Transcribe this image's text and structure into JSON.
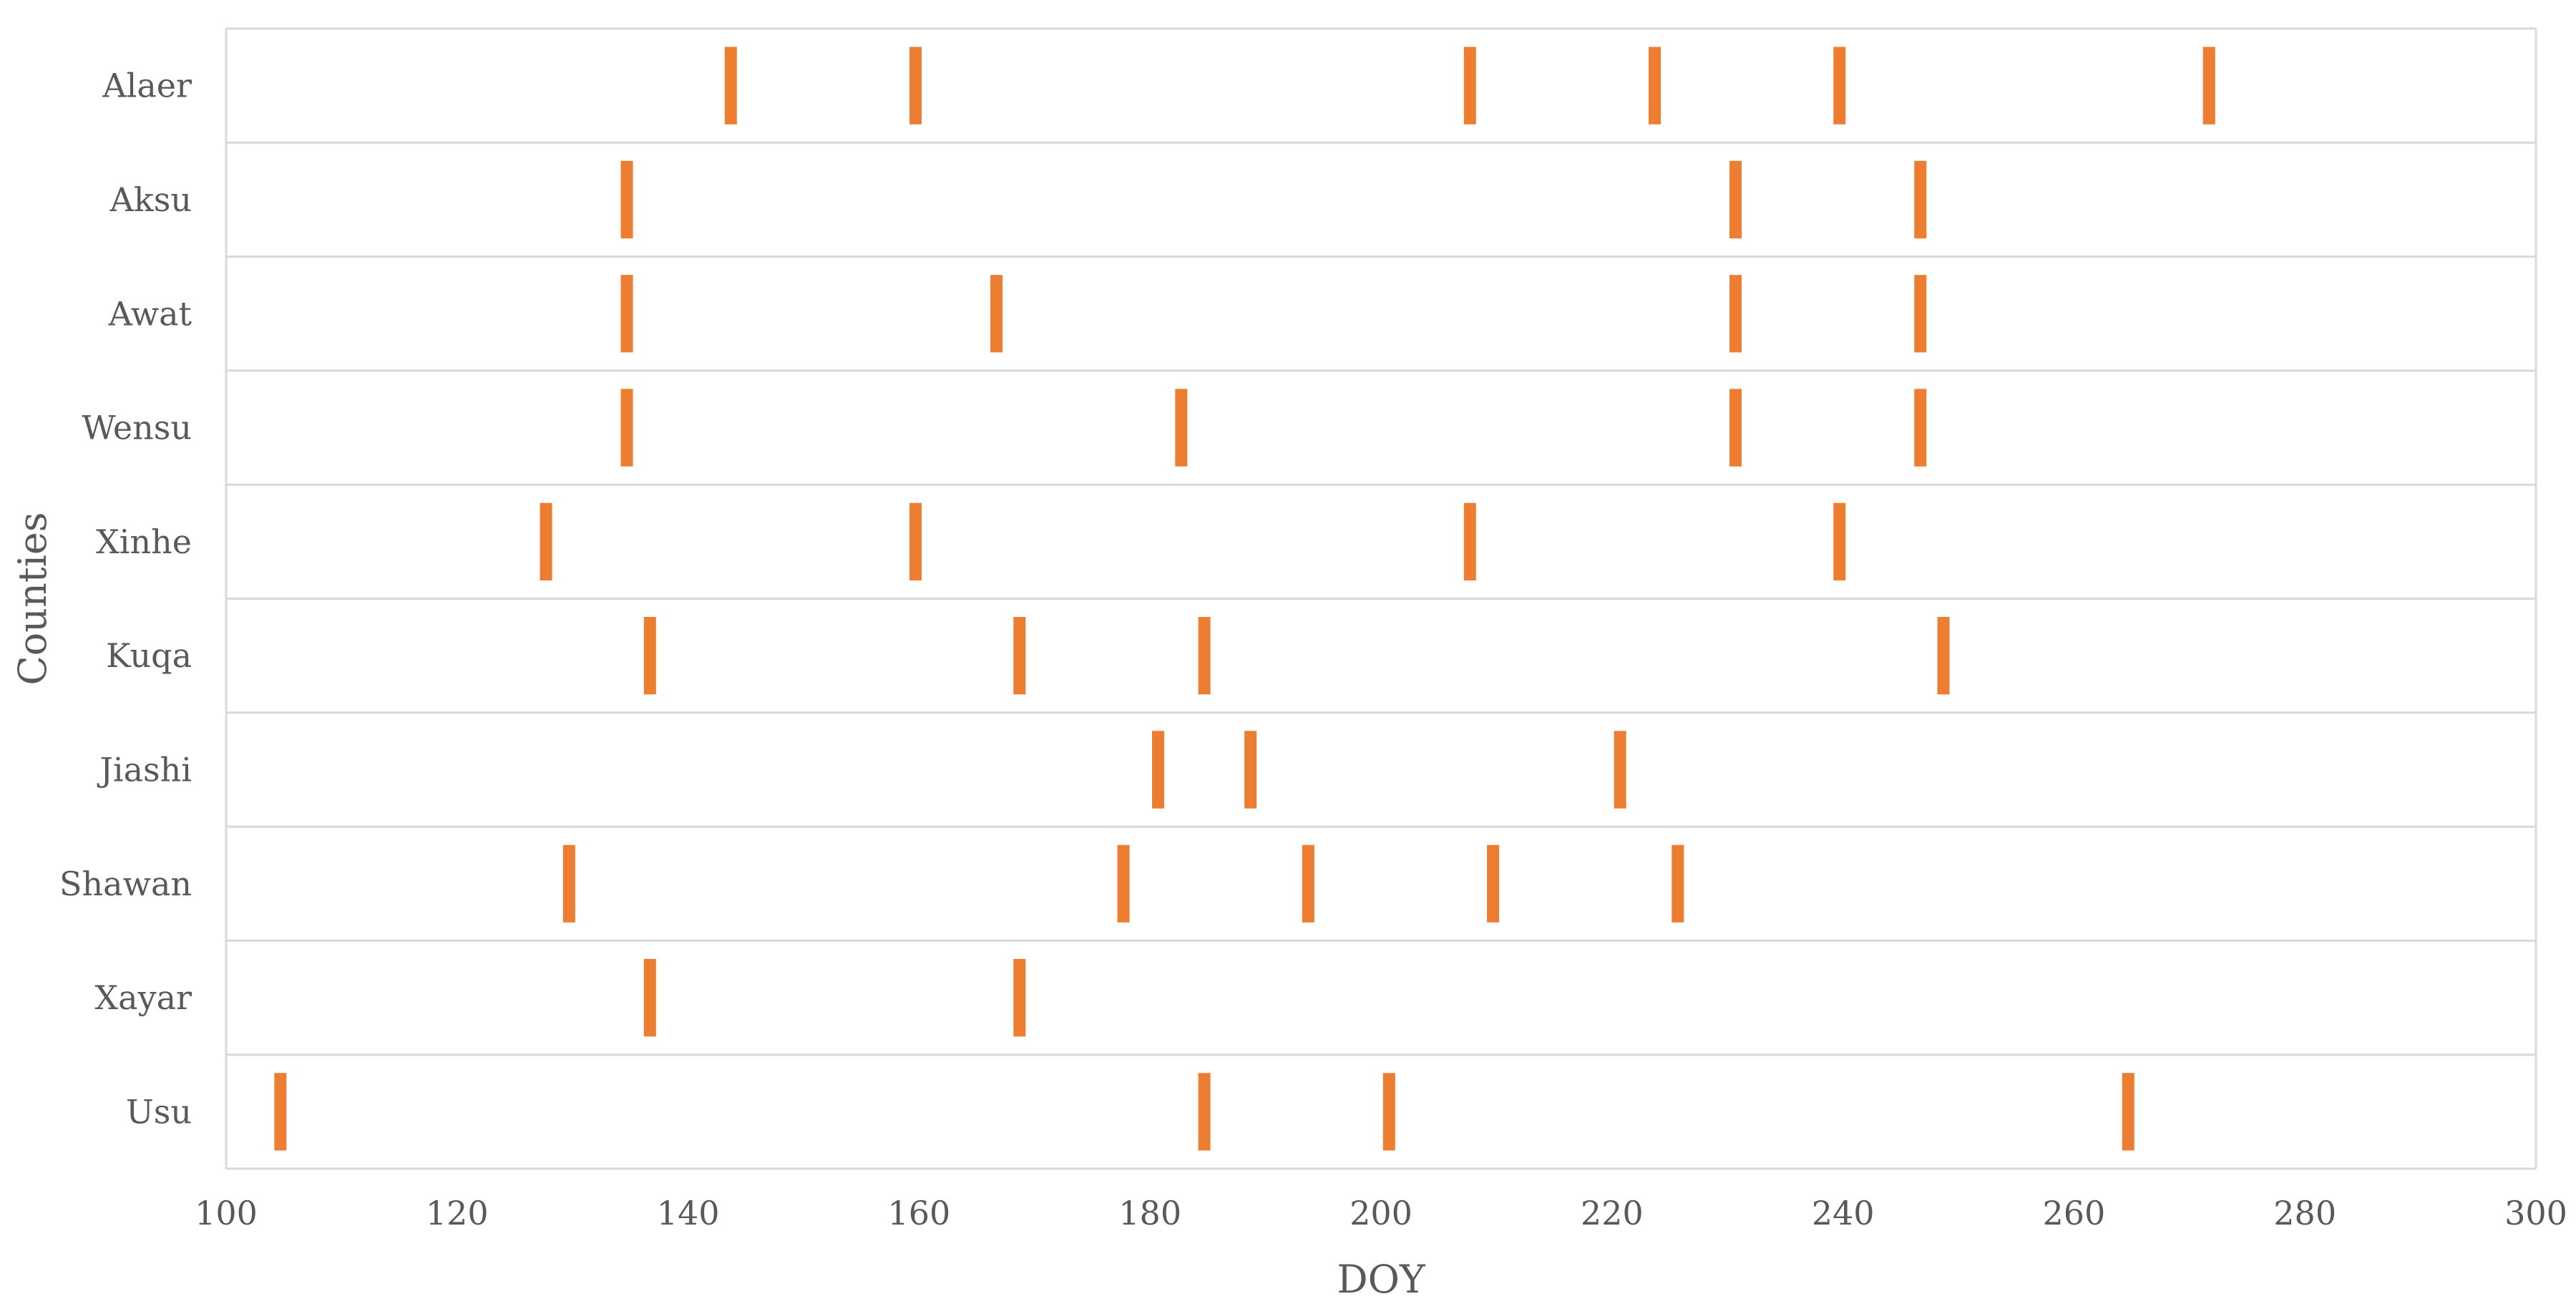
{
  "chart_data": {
    "type": "scatter",
    "title": "",
    "xlabel": "DOY",
    "ylabel": "Counties",
    "xlim": [
      100,
      300
    ],
    "x_ticks": [
      100,
      120,
      140,
      160,
      180,
      200,
      220,
      240,
      260,
      280,
      300
    ],
    "grid": true,
    "legend": "none",
    "marker": "vertical-bar",
    "color": "#ED7D31",
    "categories": [
      "Alaer",
      "Aksu",
      "Awat",
      "Wensu",
      "Xinhe",
      "Kuqa",
      "Jiashi",
      "Shawan",
      "Xayar",
      "Usu"
    ],
    "series": [
      {
        "category": "Alaer",
        "x": [
          143.7,
          159.7,
          207.7,
          223.7,
          239.7,
          271.7
        ]
      },
      {
        "category": "Aksu",
        "x": [
          134.7,
          230.7,
          246.7
        ]
      },
      {
        "category": "Awat",
        "x": [
          134.7,
          166.7,
          230.7,
          246.7
        ]
      },
      {
        "category": "Wensu",
        "x": [
          134.7,
          182.7,
          230.7,
          246.7
        ]
      },
      {
        "category": "Xinhe",
        "x": [
          127.7,
          159.7,
          207.7,
          239.7
        ]
      },
      {
        "category": "Kuqa",
        "x": [
          136.7,
          168.7,
          184.7,
          248.7
        ]
      },
      {
        "category": "Jiashi",
        "x": [
          180.7,
          188.7,
          220.7
        ]
      },
      {
        "category": "Shawan",
        "x": [
          129.7,
          177.7,
          193.7,
          209.7,
          225.7
        ]
      },
      {
        "category": "Xayar",
        "x": [
          136.7,
          168.7
        ]
      },
      {
        "category": "Usu",
        "x": [
          104.7,
          184.7,
          200.7,
          264.7
        ]
      }
    ]
  }
}
